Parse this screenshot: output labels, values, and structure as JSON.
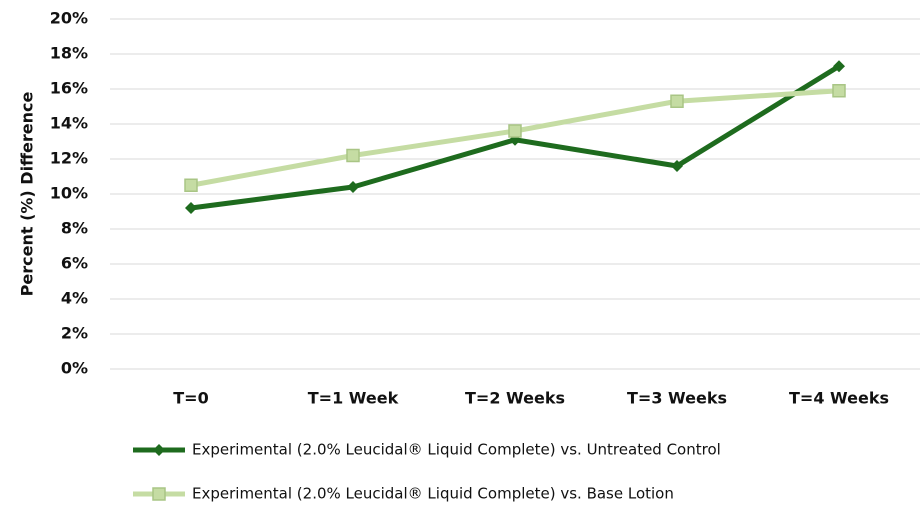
{
  "chart_data": {
    "type": "line",
    "y_label": "Percent (%) Difference",
    "categories": [
      "T=0",
      "T=1 Week",
      "T=2 Weeks",
      "T=3 Weeks",
      "T=4 Weeks"
    ],
    "series": [
      {
        "name": "Experimental (2.0% Leucidal® Liquid Complete) vs. Untreated Control",
        "color": "#1e6b1e",
        "marker": "diamond",
        "values": [
          9.2,
          10.4,
          13.1,
          11.6,
          17.3
        ]
      },
      {
        "name": "Experimental (2.0% Leucidal® Liquid Complete) vs. Base Lotion",
        "color": "#c5dca3",
        "marker": "square",
        "values": [
          10.5,
          12.2,
          13.6,
          15.3,
          15.9
        ]
      }
    ],
    "ylim": [
      0,
      20
    ],
    "yticks": [
      {
        "value": 0,
        "label": "0%"
      },
      {
        "value": 2,
        "label": "2%"
      },
      {
        "value": 4,
        "label": "4%"
      },
      {
        "value": 6,
        "label": "6%"
      },
      {
        "value": 8,
        "label": "8%"
      },
      {
        "value": 10,
        "label": "10%"
      },
      {
        "value": 12,
        "label": "12%"
      },
      {
        "value": 14,
        "label": "14%"
      },
      {
        "value": 16,
        "label": "16%"
      },
      {
        "value": 18,
        "label": "18%"
      },
      {
        "value": 20,
        "label": "20%"
      }
    ],
    "grid": true,
    "legend": "bottom"
  }
}
